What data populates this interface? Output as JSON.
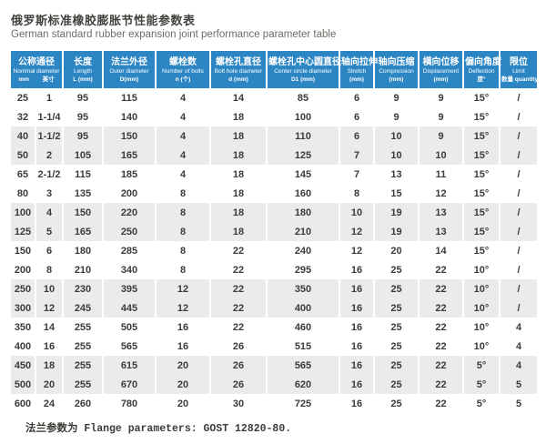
{
  "page": {
    "title": "俄罗斯标准橡胶膨胀节性能参数表",
    "subtitle": "German standard rubber expansion joint performance parameter table",
    "footnote": "法兰参数为 Flange parameters: GOST 12820-80."
  },
  "colors": {
    "header_bg": "#2c86c4",
    "header_text": "#ffffff",
    "row_bg": "#ffffff",
    "row_alt_bg": "#ebebeb",
    "body_text": "#3b3b3b",
    "title_text": "#44423e",
    "subtitle_text": "#6e6c66"
  },
  "table": {
    "columns": [
      {
        "zh": "公称通径",
        "en": "Nominal diameter",
        "units": [
          "mm",
          "英寸"
        ],
        "colspan": 2
      },
      {
        "zh": "长度",
        "en": "Length",
        "units": [
          "L (mm)"
        ]
      },
      {
        "zh": "法兰外径",
        "en": "Outer diameter",
        "units": [
          "D(mm)"
        ]
      },
      {
        "zh": "螺栓数",
        "en": "Number of bolts",
        "units": [
          "n (个)"
        ]
      },
      {
        "zh": "螺栓孔直径",
        "en": "Bolt hole diameter",
        "units": [
          "d (mm)"
        ]
      },
      {
        "zh": "螺栓孔中心圆直径",
        "en": "Center circle diameter",
        "units": [
          "D1 (mm)"
        ]
      },
      {
        "zh": "轴向拉伸",
        "en": "Stretch",
        "units": [
          "(mm)"
        ]
      },
      {
        "zh": "轴向压缩",
        "en": "Compression",
        "units": [
          "(mm)"
        ]
      },
      {
        "zh": "横向位移",
        "en": "Displacement",
        "units": [
          "(mm)"
        ]
      },
      {
        "zh": "偏向角度",
        "en": "Deflection",
        "units": [
          "度°"
        ]
      },
      {
        "zh": "限位",
        "en": "Limit",
        "units": [
          "数量 quantity"
        ]
      }
    ],
    "rows": [
      [
        25,
        "1",
        95,
        115,
        4,
        14,
        85,
        6,
        9,
        9,
        "15°",
        "/"
      ],
      [
        32,
        "1-1/4",
        95,
        140,
        4,
        18,
        100,
        6,
        9,
        9,
        "15°",
        "/"
      ],
      [
        40,
        "1-1/2",
        95,
        150,
        4,
        18,
        110,
        6,
        10,
        9,
        "15°",
        "/"
      ],
      [
        50,
        "2",
        105,
        165,
        4,
        18,
        125,
        7,
        10,
        10,
        "15°",
        "/"
      ],
      [
        65,
        "2-1/2",
        115,
        185,
        4,
        18,
        145,
        7,
        13,
        11,
        "15°",
        "/"
      ],
      [
        80,
        "3",
        135,
        200,
        8,
        18,
        160,
        8,
        15,
        12,
        "15°",
        "/"
      ],
      [
        100,
        "4",
        150,
        220,
        8,
        18,
        180,
        10,
        19,
        13,
        "15°",
        "/"
      ],
      [
        125,
        "5",
        165,
        250,
        8,
        18,
        210,
        12,
        19,
        13,
        "15°",
        "/"
      ],
      [
        150,
        "6",
        180,
        285,
        8,
        22,
        240,
        12,
        20,
        14,
        "15°",
        "/"
      ],
      [
        200,
        "8",
        210,
        340,
        8,
        22,
        295,
        16,
        25,
        22,
        "10°",
        "/"
      ],
      [
        250,
        "10",
        230,
        395,
        12,
        22,
        350,
        16,
        25,
        22,
        "10°",
        "/"
      ],
      [
        300,
        "12",
        245,
        445,
        12,
        22,
        400,
        16,
        25,
        22,
        "10°",
        "/"
      ],
      [
        350,
        "14",
        255,
        505,
        16,
        22,
        460,
        16,
        25,
        22,
        "10°",
        "4"
      ],
      [
        400,
        "16",
        255,
        565,
        16,
        26,
        515,
        16,
        25,
        22,
        "10°",
        "4"
      ],
      [
        450,
        "18",
        255,
        615,
        20,
        26,
        565,
        16,
        25,
        22,
        "5°",
        "4"
      ],
      [
        500,
        "20",
        255,
        670,
        20,
        26,
        620,
        16,
        25,
        22,
        "5°",
        "5"
      ],
      [
        600,
        "24",
        260,
        780,
        20,
        30,
        725,
        16,
        25,
        22,
        "5°",
        "5"
      ]
    ]
  }
}
